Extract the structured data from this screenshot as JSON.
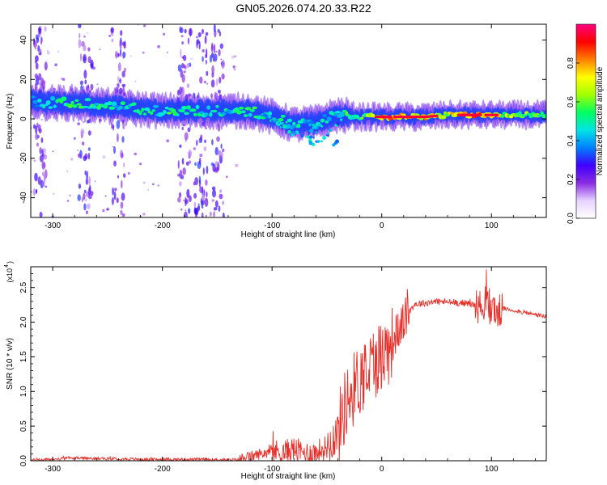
{
  "chart_data": [
    {
      "type": "heatmap",
      "title": "GN05.2026.074.20.33.R22",
      "xlabel": "Height of straight line (km)",
      "ylabel": "Frequency (Hz)",
      "xlim": [
        -320,
        150
      ],
      "ylim": [
        -50,
        48
      ],
      "xticks": [
        -300,
        -200,
        -100,
        0,
        100
      ],
      "xtick_labels": [
        "-300",
        "-200",
        "-100",
        "0",
        "100"
      ],
      "yticks": [
        -40,
        -20,
        0,
        20,
        40
      ],
      "ytick_labels": [
        "-40",
        "-20",
        "0",
        "20",
        "40"
      ],
      "colorbar": {
        "label": "Normalized spectral amplitude",
        "range": [
          0,
          1
        ],
        "ticks": [
          0.0,
          0.2,
          0.4,
          0.6,
          0.8
        ],
        "tick_labels": [
          "0.0",
          "0.2",
          "0.4",
          "0.6",
          "0.8"
        ],
        "colors": [
          "#ffffff",
          "#e6d2ff",
          "#8a2be2",
          "#3f00ff",
          "#0080ff",
          "#00e5e5",
          "#00ff60",
          "#a0ff00",
          "#ffff00",
          "#ff8000",
          "#ff0000",
          "#ff007f"
        ]
      },
      "ridge": [
        {
          "x": -320,
          "y": 9,
          "amp": 0.45
        },
        {
          "x": -300,
          "y": 8,
          "amp": 0.5
        },
        {
          "x": -280,
          "y": 8,
          "amp": 0.55
        },
        {
          "x": -260,
          "y": 7,
          "amp": 0.55
        },
        {
          "x": -240,
          "y": 6,
          "amp": 0.5
        },
        {
          "x": -220,
          "y": 5,
          "amp": 0.5
        },
        {
          "x": -200,
          "y": 4,
          "amp": 0.55
        },
        {
          "x": -180,
          "y": 4,
          "amp": 0.5
        },
        {
          "x": -160,
          "y": 4,
          "amp": 0.5
        },
        {
          "x": -140,
          "y": 4,
          "amp": 0.5
        },
        {
          "x": -120,
          "y": 4,
          "amp": 0.55
        },
        {
          "x": -100,
          "y": 1,
          "amp": 0.5
        },
        {
          "x": -80,
          "y": -3,
          "amp": 0.5
        },
        {
          "x": -60,
          "y": -2,
          "amp": 0.45
        },
        {
          "x": -40,
          "y": 2,
          "amp": 0.5
        },
        {
          "x": -20,
          "y": 1,
          "amp": 0.6
        },
        {
          "x": 0,
          "y": 1,
          "amp": 0.75
        },
        {
          "x": 20,
          "y": 1,
          "amp": 0.85
        },
        {
          "x": 40,
          "y": 1,
          "amp": 0.8
        },
        {
          "x": 60,
          "y": 2,
          "amp": 0.75
        },
        {
          "x": 80,
          "y": 2,
          "amp": 0.85
        },
        {
          "x": 100,
          "y": 2,
          "amp": 0.8
        },
        {
          "x": 120,
          "y": 2,
          "amp": 0.65
        },
        {
          "x": 150,
          "y": 2,
          "amp": 0.6
        }
      ],
      "vertical_bands_x": [
        -312,
        -270,
        -240,
        -180,
        -165,
        -150
      ]
    },
    {
      "type": "line",
      "xlabel": "Height of straight line (km)",
      "ylabel": "SNR (10 * v/v)",
      "y_scale_label": "(x10",
      "y_scale_exponent": "4",
      "xlim": [
        -320,
        150
      ],
      "ylim": [
        0,
        2.8
      ],
      "xticks": [
        -300,
        -200,
        -100,
        0,
        100
      ],
      "xtick_labels": [
        "-300",
        "-200",
        "-100",
        "0",
        "100"
      ],
      "yticks": [
        0.0,
        0.5,
        1.0,
        1.5,
        2.0,
        2.5
      ],
      "ytick_labels": [
        "0.0",
        "0.5",
        "1.0",
        "1.5",
        "2.0",
        "2.5"
      ],
      "color": "#e8302a",
      "series": [
        {
          "name": "SNR",
          "x": [
            -320,
            -300,
            -280,
            -260,
            -240,
            -220,
            -200,
            -180,
            -160,
            -140,
            -130,
            -120,
            -110,
            -100,
            -90,
            -80,
            -70,
            -60,
            -50,
            -40,
            -35,
            -30,
            -25,
            -20,
            -15,
            -10,
            -5,
            0,
            5,
            10,
            15,
            20,
            25,
            30,
            40,
            50,
            60,
            70,
            80,
            90,
            95,
            100,
            105,
            110,
            120,
            130,
            140,
            150
          ],
          "values": [
            0.01,
            0.02,
            0.04,
            0.03,
            0.03,
            0.02,
            0.02,
            0.02,
            0.02,
            0.01,
            0.02,
            0.06,
            0.1,
            0.14,
            0.12,
            0.17,
            0.1,
            0.12,
            0.2,
            0.42,
            0.72,
            0.92,
            1.05,
            1.18,
            1.28,
            1.36,
            1.46,
            1.52,
            1.6,
            1.72,
            1.88,
            2.02,
            2.15,
            2.26,
            2.28,
            2.3,
            2.29,
            2.28,
            2.27,
            2.22,
            2.3,
            2.25,
            2.12,
            2.2,
            2.17,
            2.14,
            2.11,
            2.08
          ]
        }
      ]
    }
  ]
}
